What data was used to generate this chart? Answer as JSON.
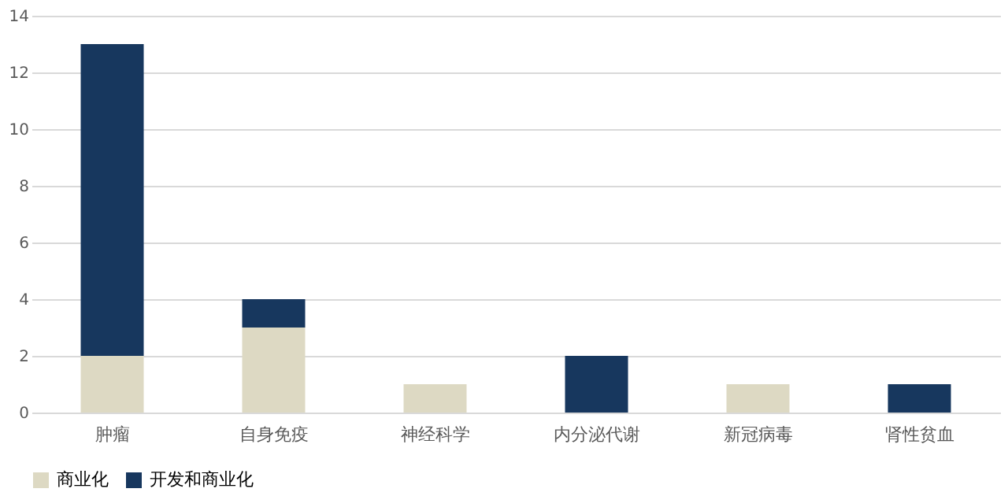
{
  "chart_data": {
    "type": "bar",
    "stacked": true,
    "categories": [
      "肿瘤",
      "自身免疫",
      "神经科学",
      "内分泌代谢",
      "新冠病毒",
      "肾性贫血"
    ],
    "series": [
      {
        "name": "商业化",
        "color": "#ddd9c3",
        "values": [
          2,
          3,
          1,
          0,
          1,
          0
        ]
      },
      {
        "name": "开发和商业化",
        "color": "#17375e",
        "values": [
          11,
          1,
          0,
          2,
          0,
          1
        ]
      }
    ],
    "ylim": [
      0,
      14
    ],
    "yticks": [
      0,
      2,
      4,
      6,
      8,
      10,
      12,
      14
    ],
    "grid": "y",
    "legend": "bottom"
  }
}
